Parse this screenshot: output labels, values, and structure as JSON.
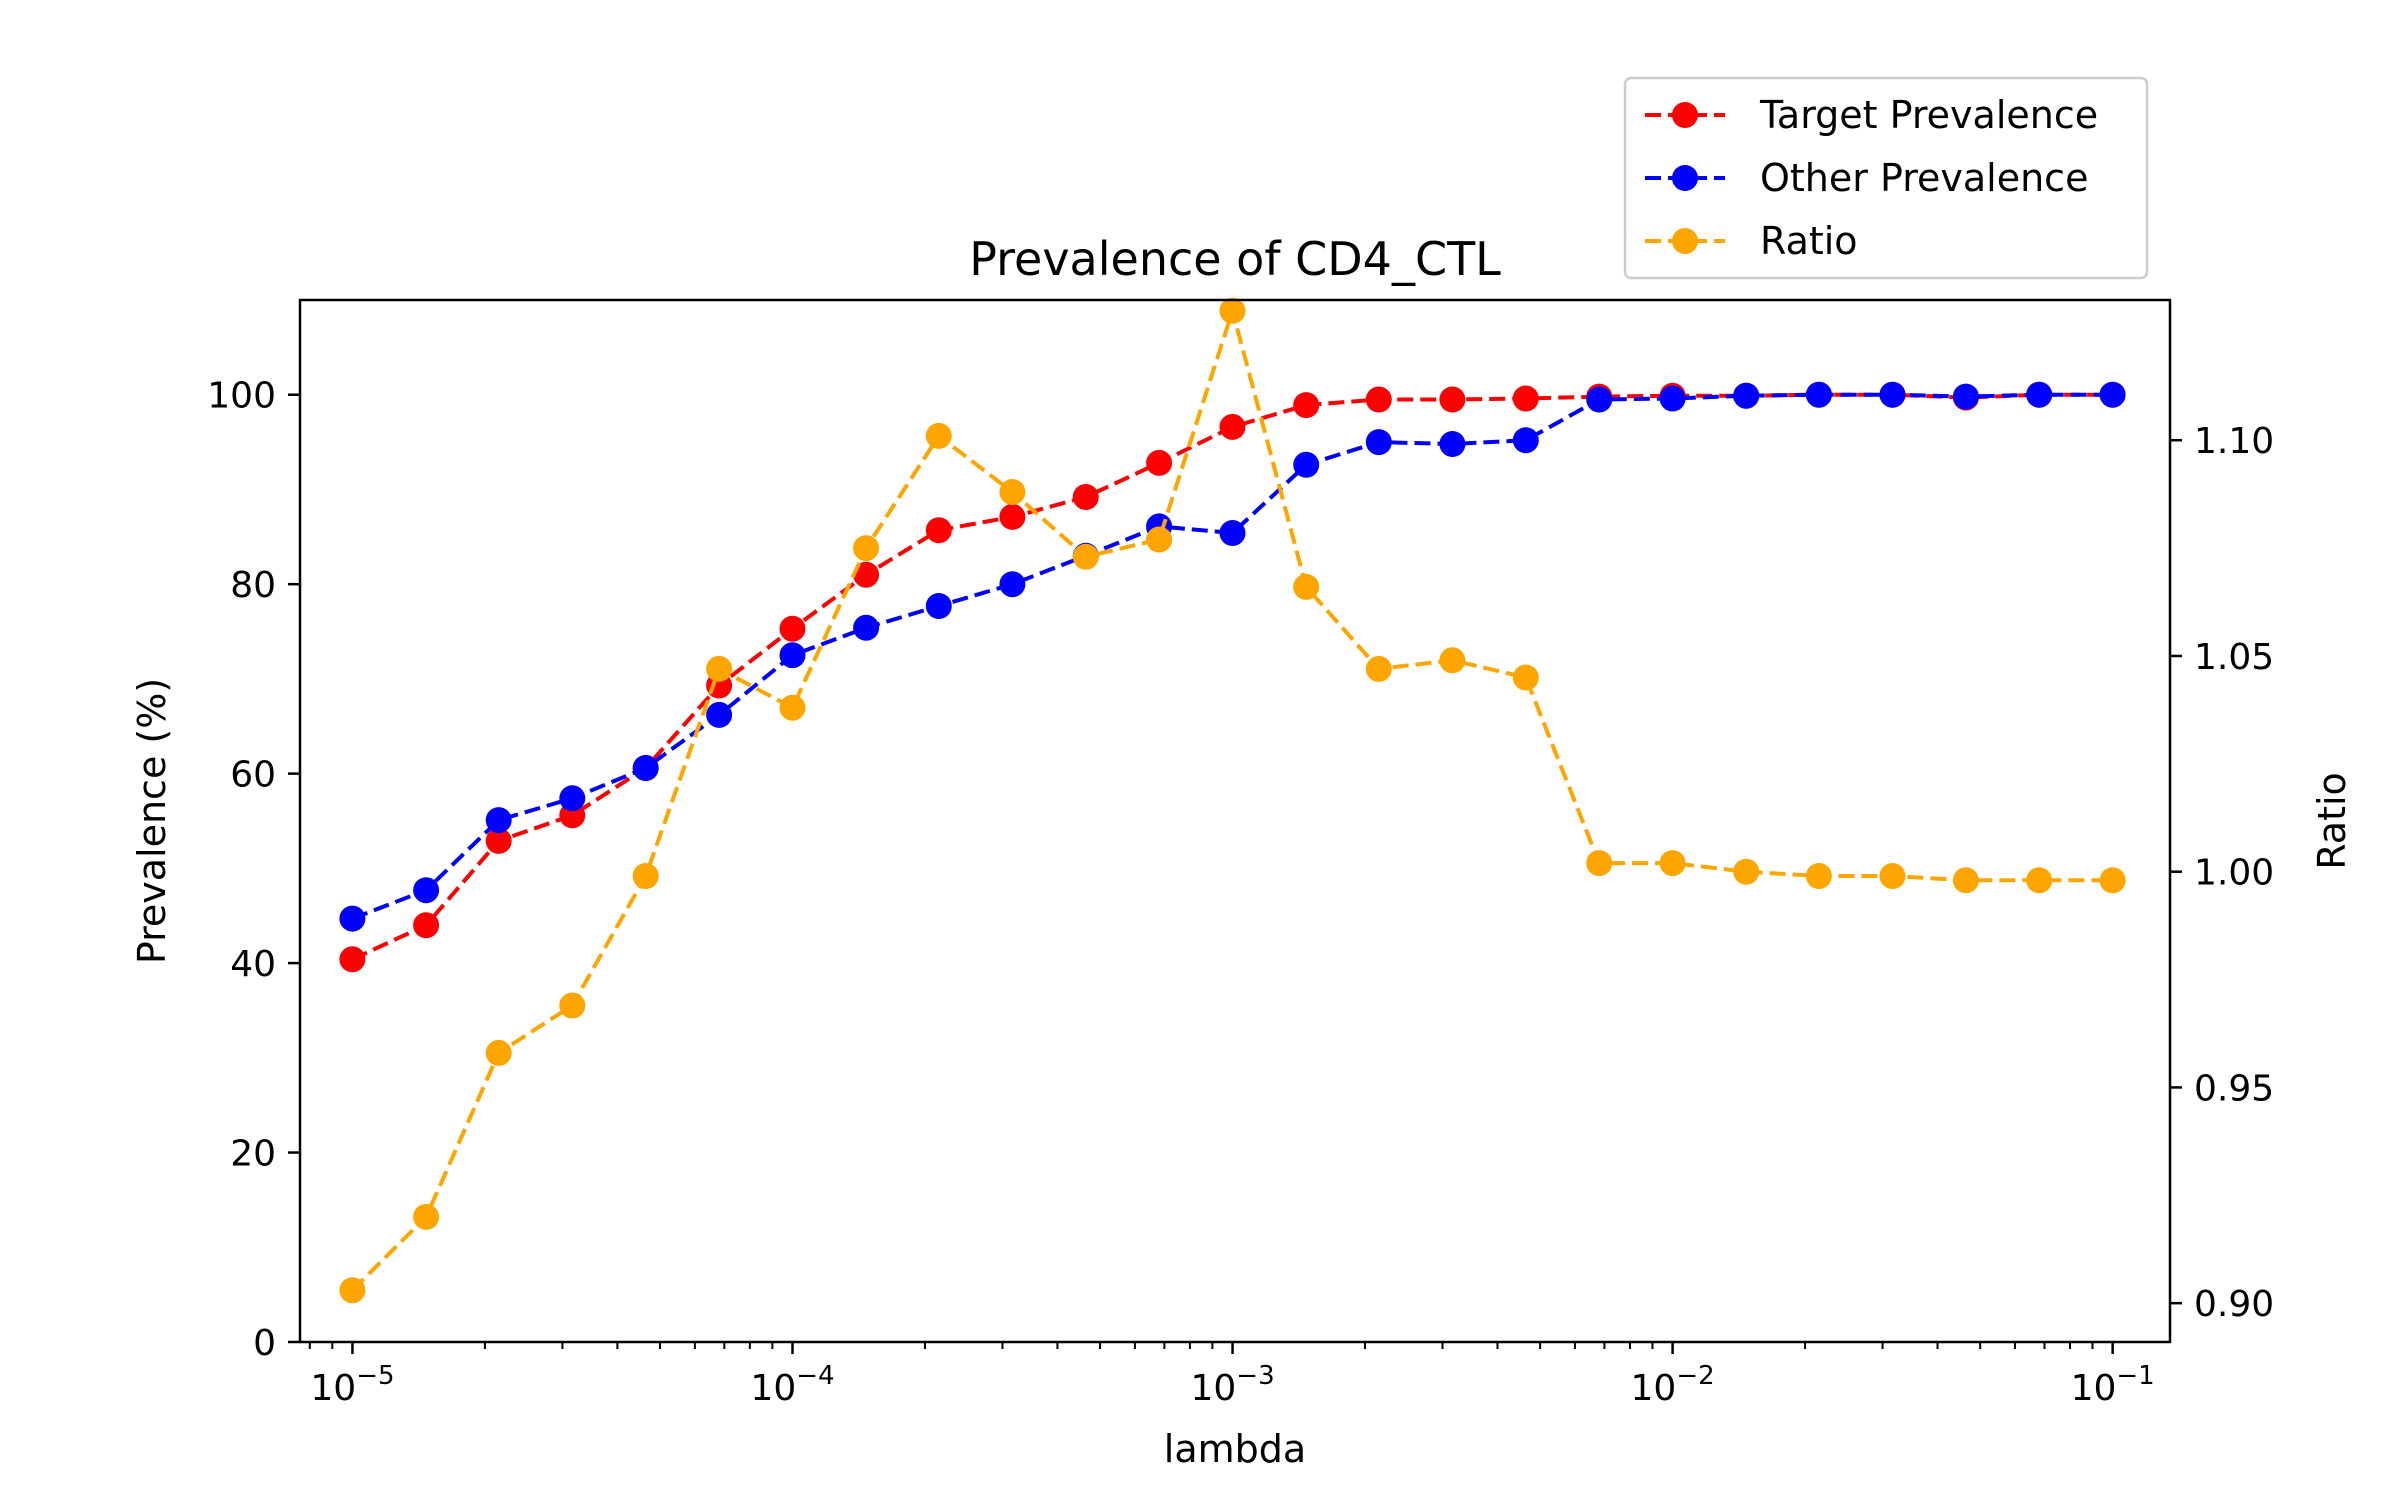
{
  "chart_data": {
    "type": "line",
    "title": "Prevalence of CD4_CTL",
    "xlabel": "lambda",
    "ylabel": "Prevalence (%)",
    "y2label": "Ratio",
    "xscale": "log",
    "xlim": [
      7.6e-06,
      0.135
    ],
    "ylim": [
      0,
      110
    ],
    "y2lim": [
      0.891,
      1.1325
    ],
    "grid": false,
    "legend_position": "top-right, above plot",
    "x": [
      1e-05,
      1.47e-05,
      2.15e-05,
      3.16e-05,
      4.64e-05,
      6.81e-05,
      0.0001,
      0.000147,
      0.000215,
      0.000316,
      0.000464,
      0.000681,
      0.001,
      0.00147,
      0.00215,
      0.00316,
      0.00464,
      0.00681,
      0.01,
      0.0147,
      0.0215,
      0.0316,
      0.0464,
      0.0681,
      0.1
    ],
    "x_ticks": [
      {
        "value": 1e-05,
        "base": "10",
        "exp": "−5"
      },
      {
        "value": 0.0001,
        "base": "10",
        "exp": "−4"
      },
      {
        "value": 0.001,
        "base": "10",
        "exp": "−3"
      },
      {
        "value": 0.01,
        "base": "10",
        "exp": "−2"
      },
      {
        "value": 0.1,
        "base": "10",
        "exp": "−1"
      }
    ],
    "y_ticks": [
      "0",
      "20",
      "40",
      "60",
      "80",
      "100"
    ],
    "y2_ticks": [
      "0.90",
      "0.95",
      "1.00",
      "1.05",
      "1.10"
    ],
    "series": [
      {
        "name": "Target Prevalence",
        "axis": "left",
        "color": "#ff0000",
        "values": [
          40.4,
          44.0,
          52.9,
          55.6,
          60.6,
          69.3,
          75.3,
          81.0,
          85.7,
          87.1,
          89.2,
          92.8,
          96.6,
          98.9,
          99.5,
          99.5,
          99.6,
          99.8,
          99.9,
          99.9,
          100.0,
          100.0,
          99.7,
          100.0,
          100.0
        ]
      },
      {
        "name": "Other Prevalence",
        "axis": "left",
        "color": "#0000ff",
        "values": [
          44.7,
          47.7,
          55.1,
          57.4,
          60.6,
          66.2,
          72.5,
          75.4,
          77.7,
          80.0,
          83.0,
          86.1,
          85.4,
          92.6,
          95.0,
          94.8,
          95.2,
          99.5,
          99.6,
          99.9,
          100.0,
          100.0,
          99.8,
          100.0,
          100.0
        ]
      },
      {
        "name": "Ratio",
        "axis": "right",
        "color": "#ffa500",
        "values": [
          0.903,
          0.92,
          0.958,
          0.969,
          0.999,
          1.047,
          1.038,
          1.075,
          1.101,
          1.088,
          1.073,
          1.077,
          1.13,
          1.066,
          1.047,
          1.049,
          1.045,
          1.002,
          1.002,
          1.0,
          0.999,
          0.999,
          0.998,
          0.998,
          0.998
        ]
      }
    ]
  }
}
